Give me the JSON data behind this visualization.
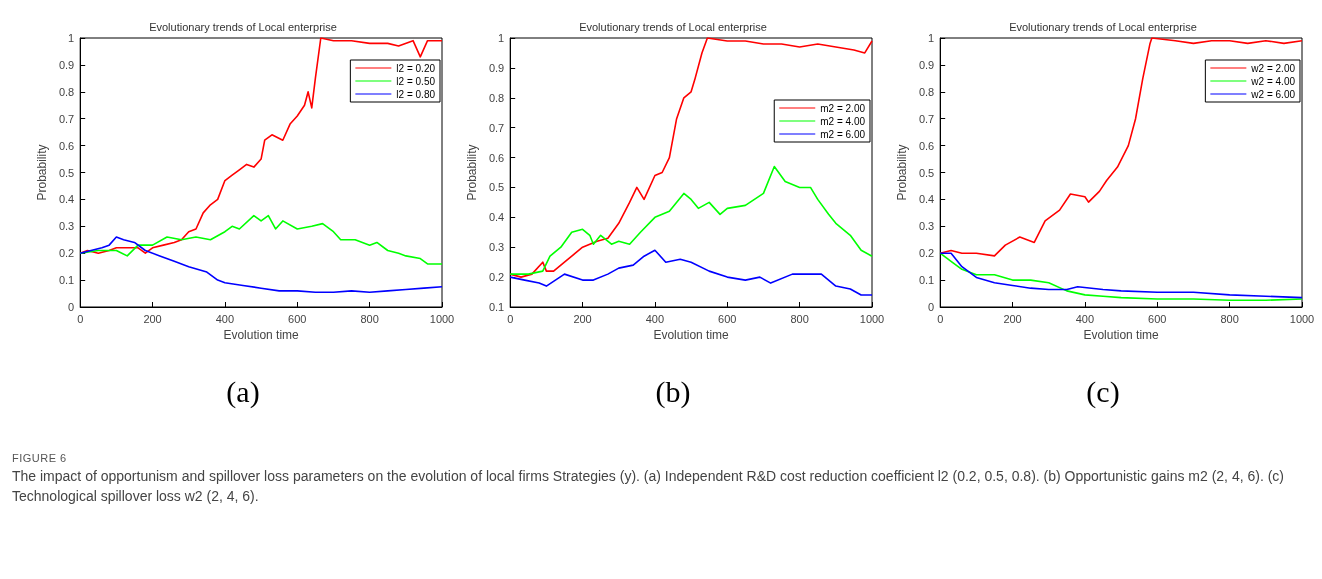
{
  "chart_data": [
    {
      "type": "line",
      "title": "Evolutionary trends of Local enterprise",
      "xlabel": "Evolution time",
      "ylabel": "Probability",
      "xlim": [
        0,
        1000
      ],
      "xticks": [
        0,
        200,
        400,
        600,
        800,
        1000
      ],
      "ylim": [
        0,
        1
      ],
      "yticks": [
        0,
        0.1,
        0.2,
        0.3,
        0.4,
        0.5,
        0.6,
        0.7,
        0.8,
        0.9,
        1
      ],
      "grid": false,
      "legend": "top right",
      "marker": "none",
      "line_style": "solid",
      "annotations": [
        "(a)",
        "FIGURE 6",
        "The impact of opportunism and spillover loss parameters on the evolution of local firms Strategies (y). (a) Independent R&D cost reduction coefficient l2 (0.2, 0.5, 0.8). (b) Opportunistic gains m2 (2, 4, 6). (c) Technological spillover loss w2 (2, 4, 6)."
      ],
      "series": [
        {
          "name": "l2 = 0.20",
          "color": "#ff0000",
          "x": [
            0,
            20,
            50,
            80,
            100,
            130,
            160,
            180,
            200,
            230,
            260,
            280,
            300,
            320,
            340,
            360,
            380,
            400,
            420,
            440,
            460,
            480,
            500,
            510,
            530,
            560,
            580,
            600,
            620,
            630,
            640,
            650,
            665,
            700,
            750,
            800,
            850,
            880,
            920,
            940,
            960,
            1000
          ],
          "values": [
            0.2,
            0.21,
            0.2,
            0.21,
            0.22,
            0.22,
            0.22,
            0.2,
            0.22,
            0.23,
            0.24,
            0.25,
            0.28,
            0.29,
            0.35,
            0.38,
            0.4,
            0.47,
            0.49,
            0.51,
            0.53,
            0.52,
            0.55,
            0.62,
            0.64,
            0.62,
            0.68,
            0.71,
            0.75,
            0.8,
            0.74,
            0.85,
            1.0,
            0.99,
            0.99,
            0.98,
            0.98,
            0.97,
            0.99,
            0.93,
            0.99,
            0.99
          ]
        },
        {
          "name": "l2 = 0.50",
          "color": "#00ff00",
          "x": [
            0,
            50,
            100,
            130,
            160,
            200,
            240,
            280,
            320,
            360,
            400,
            420,
            440,
            480,
            500,
            520,
            540,
            560,
            600,
            640,
            670,
            700,
            720,
            760,
            800,
            820,
            850,
            880,
            900,
            940,
            960,
            1000
          ],
          "values": [
            0.2,
            0.21,
            0.21,
            0.19,
            0.23,
            0.23,
            0.26,
            0.25,
            0.26,
            0.25,
            0.28,
            0.3,
            0.29,
            0.34,
            0.32,
            0.34,
            0.29,
            0.32,
            0.29,
            0.3,
            0.31,
            0.28,
            0.25,
            0.25,
            0.23,
            0.24,
            0.21,
            0.2,
            0.19,
            0.18,
            0.16,
            0.16
          ]
        },
        {
          "name": "l2 = 0.80",
          "color": "#0000ff",
          "x": [
            0,
            30,
            60,
            80,
            100,
            120,
            150,
            180,
            220,
            260,
            300,
            350,
            380,
            400,
            450,
            500,
            550,
            600,
            650,
            700,
            750,
            800,
            850,
            900,
            950,
            1000
          ],
          "values": [
            0.2,
            0.21,
            0.22,
            0.23,
            0.26,
            0.25,
            0.24,
            0.21,
            0.19,
            0.17,
            0.15,
            0.13,
            0.1,
            0.09,
            0.08,
            0.07,
            0.06,
            0.06,
            0.055,
            0.055,
            0.06,
            0.055,
            0.06,
            0.065,
            0.07,
            0.075
          ]
        }
      ]
    },
    {
      "type": "line",
      "title": "Evolutionary trends of Local enterprise",
      "xlabel": "Evolution time",
      "ylabel": "Probability",
      "xlim": [
        0,
        1000
      ],
      "xticks": [
        0,
        200,
        400,
        600,
        800,
        1000
      ],
      "ylim": [
        0.1,
        1
      ],
      "yticks": [
        0.1,
        0.2,
        0.3,
        0.4,
        0.5,
        0.6,
        0.7,
        0.8,
        0.9,
        1
      ],
      "grid": false,
      "legend": "right",
      "marker": "none",
      "line_style": "solid",
      "annotations": [
        "(b)"
      ],
      "series": [
        {
          "name": "m2 = 2.00",
          "color": "#ff0000",
          "x": [
            0,
            30,
            60,
            90,
            100,
            120,
            150,
            180,
            200,
            240,
            270,
            300,
            330,
            350,
            370,
            400,
            420,
            440,
            460,
            480,
            500,
            510,
            530,
            545,
            600,
            650,
            700,
            750,
            800,
            850,
            900,
            950,
            980,
            1000
          ],
          "values": [
            0.21,
            0.2,
            0.21,
            0.25,
            0.22,
            0.22,
            0.25,
            0.28,
            0.3,
            0.32,
            0.33,
            0.38,
            0.45,
            0.5,
            0.46,
            0.54,
            0.55,
            0.6,
            0.73,
            0.8,
            0.82,
            0.86,
            0.95,
            1.0,
            0.99,
            0.99,
            0.98,
            0.98,
            0.97,
            0.98,
            0.97,
            0.96,
            0.95,
            0.99
          ]
        },
        {
          "name": "m2 = 4.00",
          "color": "#00ff00",
          "x": [
            0,
            50,
            90,
            110,
            140,
            170,
            200,
            220,
            230,
            250,
            280,
            300,
            330,
            360,
            400,
            440,
            480,
            500,
            520,
            550,
            580,
            600,
            650,
            700,
            730,
            760,
            800,
            830,
            850,
            880,
            900,
            940,
            970,
            1000
          ],
          "values": [
            0.21,
            0.21,
            0.22,
            0.27,
            0.3,
            0.35,
            0.36,
            0.34,
            0.31,
            0.34,
            0.31,
            0.32,
            0.31,
            0.35,
            0.4,
            0.42,
            0.48,
            0.46,
            0.43,
            0.45,
            0.41,
            0.43,
            0.44,
            0.48,
            0.57,
            0.52,
            0.5,
            0.5,
            0.46,
            0.41,
            0.38,
            0.34,
            0.29,
            0.27
          ]
        },
        {
          "name": "m2 = 6.00",
          "color": "#0000ff",
          "x": [
            0,
            40,
            80,
            100,
            150,
            200,
            230,
            270,
            300,
            340,
            370,
            400,
            430,
            470,
            500,
            550,
            600,
            650,
            690,
            720,
            780,
            820,
            860,
            900,
            940,
            970,
            1000
          ],
          "values": [
            0.2,
            0.19,
            0.18,
            0.17,
            0.21,
            0.19,
            0.19,
            0.21,
            0.23,
            0.24,
            0.27,
            0.29,
            0.25,
            0.26,
            0.25,
            0.22,
            0.2,
            0.19,
            0.2,
            0.18,
            0.21,
            0.21,
            0.21,
            0.17,
            0.16,
            0.14,
            0.14
          ]
        }
      ]
    },
    {
      "type": "line",
      "title": "Evolutionary trends of Local enterprise",
      "xlabel": "Evolution time",
      "ylabel": "Probability",
      "xlim": [
        0,
        1000
      ],
      "xticks": [
        0,
        200,
        400,
        600,
        800,
        1000
      ],
      "ylim": [
        0,
        1
      ],
      "yticks": [
        0,
        0.1,
        0.2,
        0.3,
        0.4,
        0.5,
        0.6,
        0.7,
        0.8,
        0.9,
        1
      ],
      "grid": false,
      "legend": "top right",
      "marker": "none",
      "line_style": "solid",
      "annotations": [
        "(c)"
      ],
      "series": [
        {
          "name": "w2 = 2.00",
          "color": "#ff0000",
          "x": [
            0,
            30,
            60,
            100,
            150,
            180,
            220,
            260,
            290,
            330,
            360,
            400,
            410,
            440,
            460,
            490,
            520,
            540,
            560,
            580,
            585,
            650,
            700,
            750,
            800,
            850,
            900,
            950,
            1000
          ],
          "values": [
            0.2,
            0.21,
            0.2,
            0.2,
            0.19,
            0.23,
            0.26,
            0.24,
            0.32,
            0.36,
            0.42,
            0.41,
            0.39,
            0.43,
            0.47,
            0.52,
            0.6,
            0.7,
            0.85,
            0.98,
            1.0,
            0.99,
            0.98,
            0.99,
            0.99,
            0.98,
            0.99,
            0.98,
            0.99
          ]
        },
        {
          "name": "w2 = 4.00",
          "color": "#00ff00",
          "x": [
            0,
            30,
            60,
            100,
            150,
            200,
            250,
            300,
            350,
            400,
            450,
            500,
            600,
            700,
            800,
            900,
            1000
          ],
          "values": [
            0.2,
            0.17,
            0.14,
            0.12,
            0.12,
            0.1,
            0.1,
            0.09,
            0.06,
            0.045,
            0.04,
            0.035,
            0.03,
            0.03,
            0.025,
            0.025,
            0.03
          ]
        },
        {
          "name": "w2 = 6.00",
          "color": "#0000ff",
          "x": [
            0,
            30,
            60,
            100,
            150,
            200,
            250,
            300,
            350,
            380,
            450,
            500,
            600,
            700,
            800,
            900,
            1000
          ],
          "values": [
            0.2,
            0.2,
            0.15,
            0.11,
            0.09,
            0.08,
            0.07,
            0.065,
            0.065,
            0.075,
            0.065,
            0.06,
            0.055,
            0.055,
            0.045,
            0.04,
            0.035
          ]
        }
      ]
    }
  ]
}
